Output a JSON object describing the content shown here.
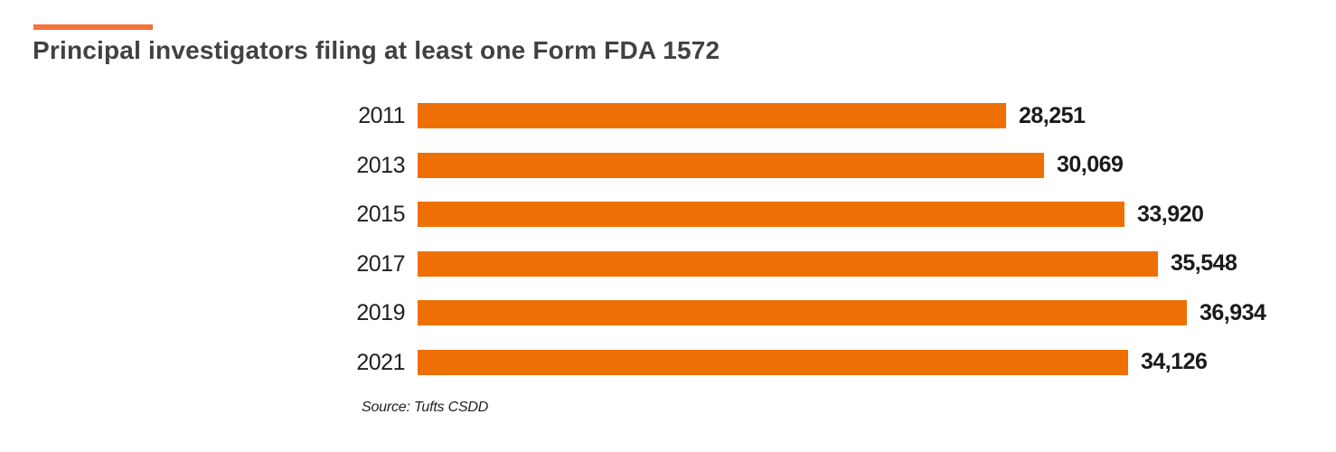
{
  "page": {
    "background": "#FFFFFF"
  },
  "colors": {
    "bar": "#EE7005",
    "accent_line": "#F4713B",
    "title_text": "#414042",
    "label_text": "#212121",
    "value_text": "#1B1B1B"
  },
  "chart_data": {
    "type": "bar",
    "orientation": "horizontal",
    "title": "Principal investigators filing at least one Form FDA 1572",
    "source": "Source: Tufts CSDD",
    "categories": [
      "2011",
      "2013",
      "2015",
      "2017",
      "2019",
      "2021"
    ],
    "values": [
      28251,
      30069,
      33920,
      35548,
      36934,
      34126
    ],
    "value_labels": [
      "28,251",
      "30,069",
      "33,920",
      "35,548",
      "36,934",
      "34,126"
    ],
    "xlim": [
      0,
      36934
    ],
    "xlabel": "",
    "ylabel": "",
    "grid": false,
    "legend": false,
    "value_labels_position": "end-of-bar"
  }
}
